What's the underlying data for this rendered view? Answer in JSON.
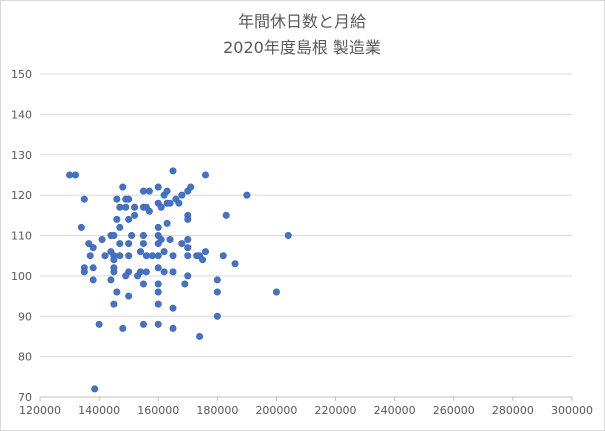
{
  "chart_data": {
    "type": "scatter",
    "title_line1": "年間休日数と月給",
    "title_line2": "2020年度島根 製造業",
    "xlim": [
      120000,
      300000
    ],
    "ylim": [
      70,
      150
    ],
    "x_ticks": [
      120000,
      140000,
      160000,
      180000,
      200000,
      220000,
      240000,
      260000,
      280000,
      300000
    ],
    "y_ticks": [
      70,
      80,
      90,
      100,
      110,
      120,
      130,
      140,
      150
    ],
    "grid": "horizontal",
    "marker_color": "#4472c4",
    "points": [
      [
        130000,
        125
      ],
      [
        132000,
        125
      ],
      [
        135000,
        119
      ],
      [
        134000,
        112
      ],
      [
        136500,
        108
      ],
      [
        138000,
        107
      ],
      [
        137000,
        105
      ],
      [
        135000,
        102
      ],
      [
        135000,
        101
      ],
      [
        138000,
        102
      ],
      [
        138000,
        99
      ],
      [
        138500,
        72
      ],
      [
        140000,
        88
      ],
      [
        141000,
        109
      ],
      [
        142000,
        105
      ],
      [
        144000,
        110
      ],
      [
        145000,
        110
      ],
      [
        144000,
        106
      ],
      [
        145000,
        105
      ],
      [
        145000,
        104
      ],
      [
        145000,
        102
      ],
      [
        145000,
        101
      ],
      [
        144000,
        99
      ],
      [
        146000,
        96
      ],
      [
        145000,
        93
      ],
      [
        146000,
        119
      ],
      [
        146000,
        114
      ],
      [
        147000,
        117
      ],
      [
        147000,
        112
      ],
      [
        147000,
        108
      ],
      [
        147000,
        105
      ],
      [
        148000,
        122
      ],
      [
        148000,
        87
      ],
      [
        149000,
        119
      ],
      [
        150000,
        119
      ],
      [
        149000,
        117
      ],
      [
        150000,
        114
      ],
      [
        150000,
        108
      ],
      [
        150000,
        105
      ],
      [
        150000,
        101
      ],
      [
        149000,
        100
      ],
      [
        150000,
        95
      ],
      [
        151000,
        110
      ],
      [
        152000,
        117
      ],
      [
        152000,
        115
      ],
      [
        153000,
        100
      ],
      [
        154000,
        106
      ],
      [
        154000,
        101
      ],
      [
        155000,
        121
      ],
      [
        155000,
        117
      ],
      [
        155000,
        110
      ],
      [
        155000,
        108
      ],
      [
        156000,
        105
      ],
      [
        156000,
        101
      ],
      [
        155000,
        98
      ],
      [
        155000,
        88
      ],
      [
        156000,
        117
      ],
      [
        157000,
        116
      ],
      [
        157000,
        121
      ],
      [
        158000,
        105
      ],
      [
        160000,
        122
      ],
      [
        160000,
        118
      ],
      [
        160000,
        112
      ],
      [
        160000,
        110
      ],
      [
        160000,
        108
      ],
      [
        160000,
        105
      ],
      [
        160000,
        102
      ],
      [
        160000,
        98
      ],
      [
        160000,
        96
      ],
      [
        160000,
        93
      ],
      [
        160000,
        88
      ],
      [
        161000,
        117
      ],
      [
        162000,
        120
      ],
      [
        161000,
        109
      ],
      [
        162000,
        106
      ],
      [
        162000,
        101
      ],
      [
        163000,
        121
      ],
      [
        163000,
        118
      ],
      [
        163000,
        113
      ],
      [
        164000,
        118
      ],
      [
        165000,
        126
      ],
      [
        164000,
        109
      ],
      [
        165000,
        105
      ],
      [
        165000,
        101
      ],
      [
        165000,
        92
      ],
      [
        165000,
        87
      ],
      [
        166000,
        119
      ],
      [
        167000,
        118
      ],
      [
        168000,
        120
      ],
      [
        168000,
        108
      ],
      [
        169000,
        98
      ],
      [
        170000,
        121
      ],
      [
        170000,
        115
      ],
      [
        170000,
        114
      ],
      [
        170000,
        109
      ],
      [
        170000,
        107
      ],
      [
        170000,
        105
      ],
      [
        171000,
        122
      ],
      [
        170000,
        100
      ],
      [
        173000,
        105
      ],
      [
        174000,
        105
      ],
      [
        174000,
        85
      ],
      [
        175000,
        104
      ],
      [
        176000,
        106
      ],
      [
        176000,
        125
      ],
      [
        180000,
        99
      ],
      [
        180000,
        96
      ],
      [
        180000,
        90
      ],
      [
        182000,
        105
      ],
      [
        183000,
        115
      ],
      [
        186000,
        103
      ],
      [
        190000,
        120
      ],
      [
        200000,
        96
      ],
      [
        204000,
        110
      ]
    ]
  }
}
